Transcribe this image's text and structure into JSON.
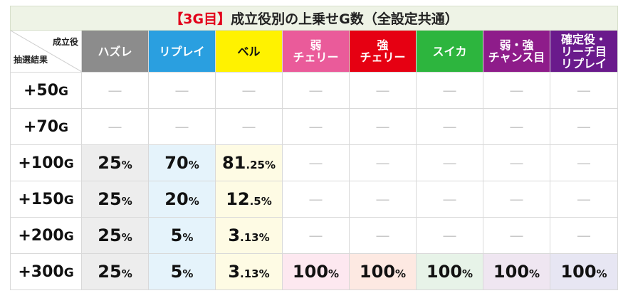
{
  "title": {
    "bracket": "【3G目】",
    "text": "成立役別の上乗せG数（全設定共通）"
  },
  "corner": {
    "top": "成立役",
    "bottom": "抽選結果"
  },
  "columns": [
    {
      "label": "ハズレ",
      "color": "#8c8c8c",
      "tint": "#ededed"
    },
    {
      "label": "リプレイ",
      "color": "#2a9fe0",
      "tint": "#e5f3fb"
    },
    {
      "label": "ベル",
      "color": "#fff200",
      "tint": "#fefbe4",
      "text_color": "#111111"
    },
    {
      "label": "弱\nチェリー",
      "color": "#ea5b9a",
      "tint": "#fde8f0"
    },
    {
      "label": "強\nチェリー",
      "color": "#e60012",
      "tint": "#fde9e2"
    },
    {
      "label": "スイカ",
      "color": "#2db53e",
      "tint": "#e7f3e8"
    },
    {
      "label": "弱・強\nチャンス目",
      "color": "#8e1c8a",
      "tint": "#efe6f1"
    },
    {
      "label": "確定役・\nリーチ目\nリプレイ",
      "color": "#6a1a8c",
      "tint": "#e7e6f3"
    }
  ],
  "rows": [
    {
      "label_num": "+50",
      "label_unit": "G",
      "cells": [
        "—",
        "—",
        "—",
        "—",
        "—",
        "—",
        "—",
        "—"
      ]
    },
    {
      "label_num": "+70",
      "label_unit": "G",
      "cells": [
        "—",
        "—",
        "—",
        "—",
        "—",
        "—",
        "—",
        "—"
      ]
    },
    {
      "label_num": "+100",
      "label_unit": "G",
      "cells": [
        {
          "int": "25",
          "dec": "",
          "unit": "%"
        },
        {
          "int": "70",
          "dec": "",
          "unit": "%"
        },
        {
          "int": "81",
          "dec": ".25",
          "unit": "%"
        },
        "—",
        "—",
        "—",
        "—",
        "—"
      ]
    },
    {
      "label_num": "+150",
      "label_unit": "G",
      "cells": [
        {
          "int": "25",
          "dec": "",
          "unit": "%"
        },
        {
          "int": "20",
          "dec": "",
          "unit": "%"
        },
        {
          "int": "12",
          "dec": ".5",
          "unit": "%"
        },
        "—",
        "—",
        "—",
        "—",
        "—"
      ]
    },
    {
      "label_num": "+200",
      "label_unit": "G",
      "cells": [
        {
          "int": "25",
          "dec": "",
          "unit": "%"
        },
        {
          "int": "5",
          "dec": "",
          "unit": "%"
        },
        {
          "int": "3",
          "dec": ".13",
          "unit": "%"
        },
        "—",
        "—",
        "—",
        "—",
        "—"
      ]
    },
    {
      "label_num": "+300",
      "label_unit": "G",
      "cells": [
        {
          "int": "25",
          "dec": "",
          "unit": "%"
        },
        {
          "int": "5",
          "dec": "",
          "unit": "%"
        },
        {
          "int": "3",
          "dec": ".13",
          "unit": "%"
        },
        {
          "int": "100",
          "dec": "",
          "unit": "%"
        },
        {
          "int": "100",
          "dec": "",
          "unit": "%"
        },
        {
          "int": "100",
          "dec": "",
          "unit": "%"
        },
        {
          "int": "100",
          "dec": "",
          "unit": "%"
        },
        {
          "int": "100",
          "dec": "",
          "unit": "%"
        }
      ]
    }
  ]
}
